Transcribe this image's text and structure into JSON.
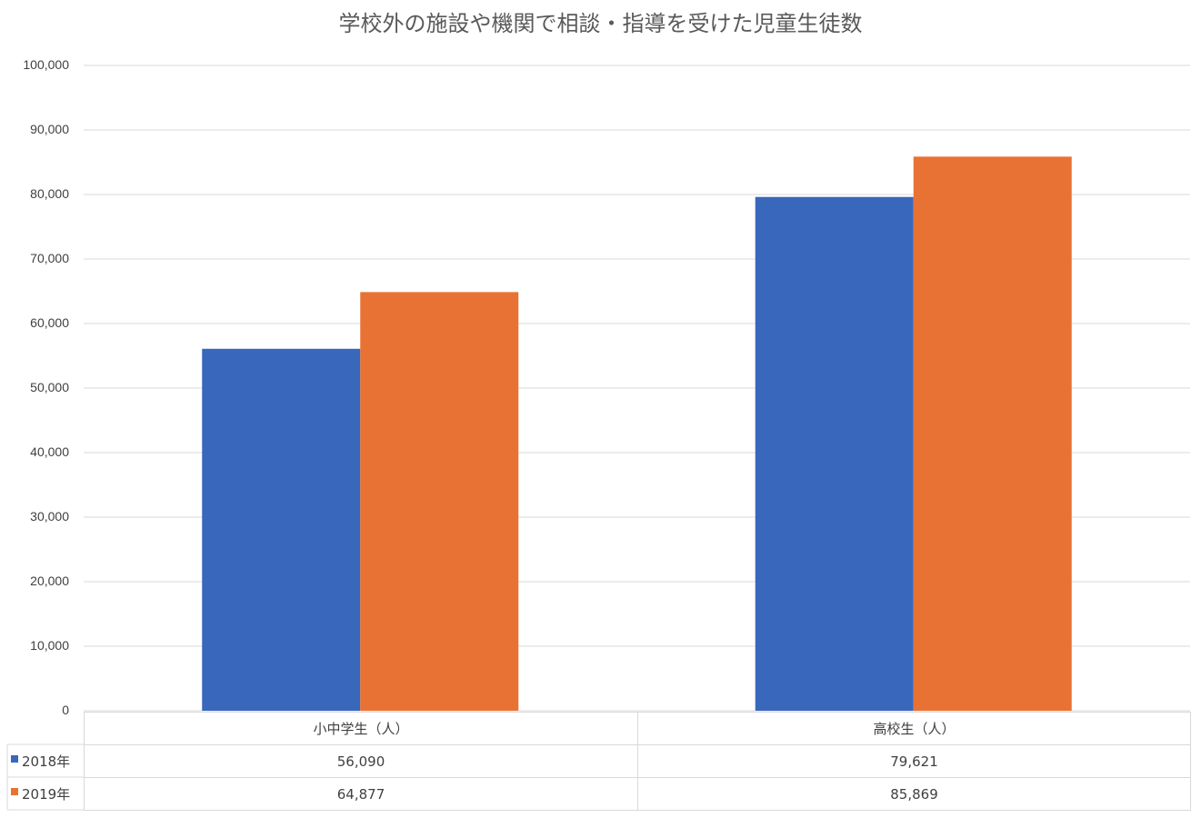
{
  "chart_data": {
    "type": "bar",
    "title": "学校外の施設や機関で相談・指導を受けた児童生徒数",
    "categories": [
      "小中学生（人）",
      "高校生（人）"
    ],
    "series": [
      {
        "name": "2018年",
        "values": [
          56090,
          79621
        ],
        "color": "#3867bb",
        "labels": [
          "56,090",
          "79,621"
        ]
      },
      {
        "name": "2019年",
        "values": [
          64877,
          85869
        ],
        "color": "#e87234",
        "labels": [
          "64,877",
          "85,869"
        ]
      }
    ],
    "ylim": [
      0,
      100000
    ],
    "yticks": [
      0,
      10000,
      20000,
      30000,
      40000,
      50000,
      60000,
      70000,
      80000,
      90000,
      100000
    ],
    "ytick_labels": [
      "0",
      "10,000",
      "20,000",
      "30,000",
      "40,000",
      "50,000",
      "60,000",
      "70,000",
      "80,000",
      "90,000",
      "100,000"
    ],
    "grid": true,
    "data_table": true,
    "gridline_color": "#d9d9d9"
  }
}
